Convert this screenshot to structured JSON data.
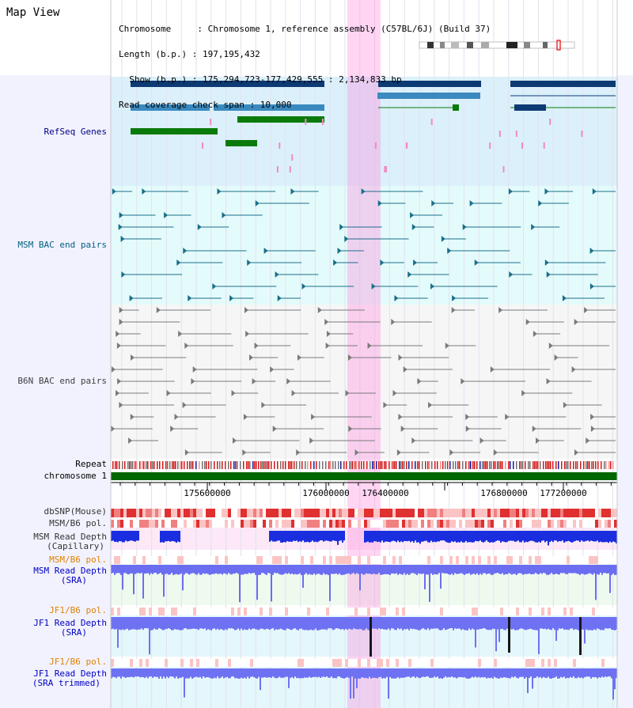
{
  "header": {
    "title": "Map View",
    "lines": [
      "Chromosome     : Chromosome 1, reference assembly (C57BL/6J) (Build 37)",
      "Length (b.p.) : 197,195,432",
      "  Show (b.p.) : 175,294,723-177,429,555 : 2,134,833 bp",
      "Read coverage check span : 10,000"
    ]
  },
  "tracks": {
    "refseq": "RefSeq Genes",
    "msm_bac": "MSM BAC end pairs",
    "b6n_bac": "B6N BAC end pairs",
    "repeat": "Repeat",
    "chromosome": "chromosome 1",
    "dbsnp": "dbSNP(Mouse)",
    "msm_pol1": "MSM/B6 pol.",
    "msm_depth_cap_1": "MSM Read Depth",
    "msm_depth_cap_2": "(Capillary)",
    "msm_pol2": "MSM/B6 pol.",
    "msm_depth_sra_1": "MSM Read Depth",
    "msm_depth_sra_2": "(SRA)",
    "jf1_pol1": "JF1/B6 pol.",
    "jf1_depth_sra_1": "JF1 Read Depth",
    "jf1_depth_sra_2": "(SRA)",
    "jf1_pol2": "JF1/B6 pol.",
    "jf1_depth_trim_1": "JF1 Read Depth",
    "jf1_depth_trim_2": "(SRA trimmed)"
  },
  "ticks": [
    "175600000",
    "176000000",
    "176400000",
    "176800000",
    "177200000"
  ],
  "colors": {
    "refseq_label": "#000080",
    "msm_label": "#006080",
    "b6n_label": "#404040",
    "pol_orange": "#e08000",
    "depth_blue": "#0000c0",
    "highlight": "#ff88dd"
  }
}
